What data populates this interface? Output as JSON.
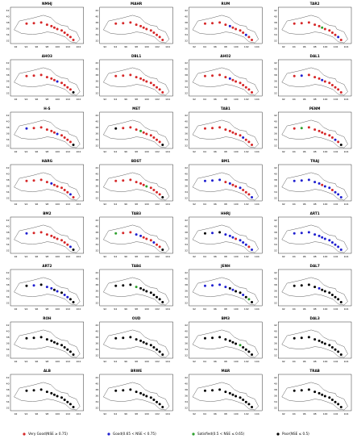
{
  "xticks": [
    92,
    94,
    96,
    98,
    100,
    102,
    104
  ],
  "yticks": [
    32,
    34,
    36,
    38,
    40,
    42
  ],
  "legend": [
    {
      "label": "Very Good(NSE ≥ 0.75)",
      "color": "#d62728"
    },
    {
      "label": "Good(0.65 < NSE < 0.75)",
      "color": "#1f1fd0"
    },
    {
      "label": "Satisfied(0.5 < NSE ≤ 0.65)",
      "color": "#2ca02c"
    },
    {
      "label": "Poor(NSE ≤ 0.5)",
      "color": "#000000"
    }
  ],
  "panels": [
    {
      "title": "NMHJ",
      "status": [
        0,
        0,
        0,
        0,
        0,
        0,
        0,
        0,
        0,
        0,
        0,
        0
      ]
    },
    {
      "title": "MAHR",
      "status": [
        0,
        0,
        0,
        0,
        0,
        0,
        0,
        0,
        0,
        0,
        0,
        0
      ]
    },
    {
      "title": "RUM",
      "status": [
        0,
        0,
        0,
        0,
        1,
        0,
        0,
        0,
        0,
        1,
        0,
        0
      ]
    },
    {
      "title": "TAR2",
      "status": [
        0,
        0,
        0,
        0,
        0,
        2,
        0,
        0,
        0,
        0,
        1,
        0
      ]
    },
    {
      "title": "AHO3",
      "status": [
        0,
        0,
        0,
        0,
        0,
        0,
        1,
        0,
        0,
        0,
        0,
        3
      ]
    },
    {
      "title": "DBL1",
      "status": [
        0,
        0,
        0,
        0,
        0,
        0,
        0,
        0,
        0,
        0,
        0,
        0
      ]
    },
    {
      "title": "AHO2",
      "status": [
        0,
        0,
        0,
        0,
        1,
        0,
        0,
        0,
        0,
        0,
        0,
        0
      ]
    },
    {
      "title": "DAL1",
      "status": [
        0,
        1,
        0,
        0,
        0,
        1,
        0,
        0,
        0,
        0,
        0,
        0
      ]
    },
    {
      "title": "H-S",
      "status": [
        1,
        0,
        0,
        0,
        0,
        0,
        1,
        0,
        0,
        0,
        0,
        3
      ]
    },
    {
      "title": "MET",
      "status": [
        3,
        0,
        0,
        0,
        2,
        0,
        0,
        0,
        0,
        0,
        0,
        3
      ]
    },
    {
      "title": "TAB1",
      "status": [
        0,
        0,
        0,
        0,
        0,
        0,
        0,
        0,
        1,
        0,
        0,
        0
      ]
    },
    {
      "title": "PENM",
      "status": [
        0,
        2,
        0,
        0,
        0,
        0,
        0,
        0,
        0,
        1,
        0,
        3
      ]
    },
    {
      "title": "HARG",
      "status": [
        0,
        0,
        0,
        0,
        1,
        0,
        0,
        0,
        0,
        0,
        1,
        0
      ]
    },
    {
      "title": "BDST",
      "status": [
        0,
        0,
        0,
        0,
        0,
        0,
        2,
        0,
        0,
        0,
        0,
        3
      ]
    },
    {
      "title": "BM1",
      "status": [
        1,
        1,
        1,
        0,
        1,
        0,
        0,
        1,
        0,
        0,
        0,
        1
      ]
    },
    {
      "title": "TRAJ",
      "status": [
        1,
        1,
        1,
        1,
        1,
        0,
        1,
        1,
        0,
        1,
        1,
        1
      ]
    },
    {
      "title": "BM2",
      "status": [
        1,
        0,
        0,
        0,
        0,
        0,
        0,
        0,
        0,
        0,
        1,
        3
      ]
    },
    {
      "title": "TAB3",
      "status": [
        2,
        0,
        0,
        1,
        1,
        0,
        0,
        0,
        1,
        0,
        0,
        3
      ]
    },
    {
      "title": "HHRJ",
      "status": [
        3,
        1,
        3,
        1,
        1,
        1,
        0,
        1,
        1,
        1,
        0,
        1
      ]
    },
    {
      "title": "ART1",
      "status": [
        1,
        1,
        1,
        1,
        1,
        1,
        1,
        1,
        1,
        1,
        1,
        1
      ]
    },
    {
      "title": "ART2",
      "status": [
        3,
        1,
        3,
        1,
        1,
        3,
        1,
        3,
        1,
        1,
        3,
        3
      ]
    },
    {
      "title": "TAB4",
      "status": [
        3,
        3,
        3,
        2,
        3,
        3,
        3,
        3,
        3,
        3,
        3,
        3
      ]
    },
    {
      "title": "JENH",
      "status": [
        1,
        1,
        1,
        1,
        3,
        1,
        3,
        3,
        1,
        3,
        2,
        3
      ]
    },
    {
      "title": "DAL7",
      "status": [
        3,
        3,
        3,
        3,
        1,
        3,
        3,
        3,
        3,
        3,
        3,
        3
      ]
    },
    {
      "title": "ROH",
      "status": [
        3,
        3,
        3,
        3,
        3,
        3,
        3,
        3,
        3,
        3,
        3,
        3
      ]
    },
    {
      "title": "OUD",
      "status": [
        3,
        3,
        3,
        3,
        3,
        3,
        3,
        3,
        3,
        3,
        3,
        3
      ]
    },
    {
      "title": "BM3",
      "status": [
        3,
        3,
        3,
        3,
        3,
        3,
        3,
        2,
        3,
        3,
        3,
        3
      ]
    },
    {
      "title": "DAL3",
      "status": [
        3,
        3,
        3,
        3,
        3,
        3,
        3,
        3,
        3,
        3,
        3,
        3
      ]
    },
    {
      "title": "ALB",
      "status": [
        3,
        3,
        3,
        3,
        3,
        3,
        3,
        3,
        3,
        3,
        3,
        3
      ]
    },
    {
      "title": "BRWE",
      "status": [
        3,
        3,
        3,
        3,
        3,
        3,
        3,
        3,
        3,
        3,
        3,
        3
      ]
    },
    {
      "title": "MAR",
      "status": [
        3,
        3,
        3,
        3,
        3,
        3,
        3,
        3,
        3,
        3,
        3,
        3
      ]
    },
    {
      "title": "TRAB",
      "status": [
        3,
        3,
        3,
        3,
        3,
        3,
        3,
        3,
        3,
        3,
        3,
        3
      ]
    }
  ]
}
